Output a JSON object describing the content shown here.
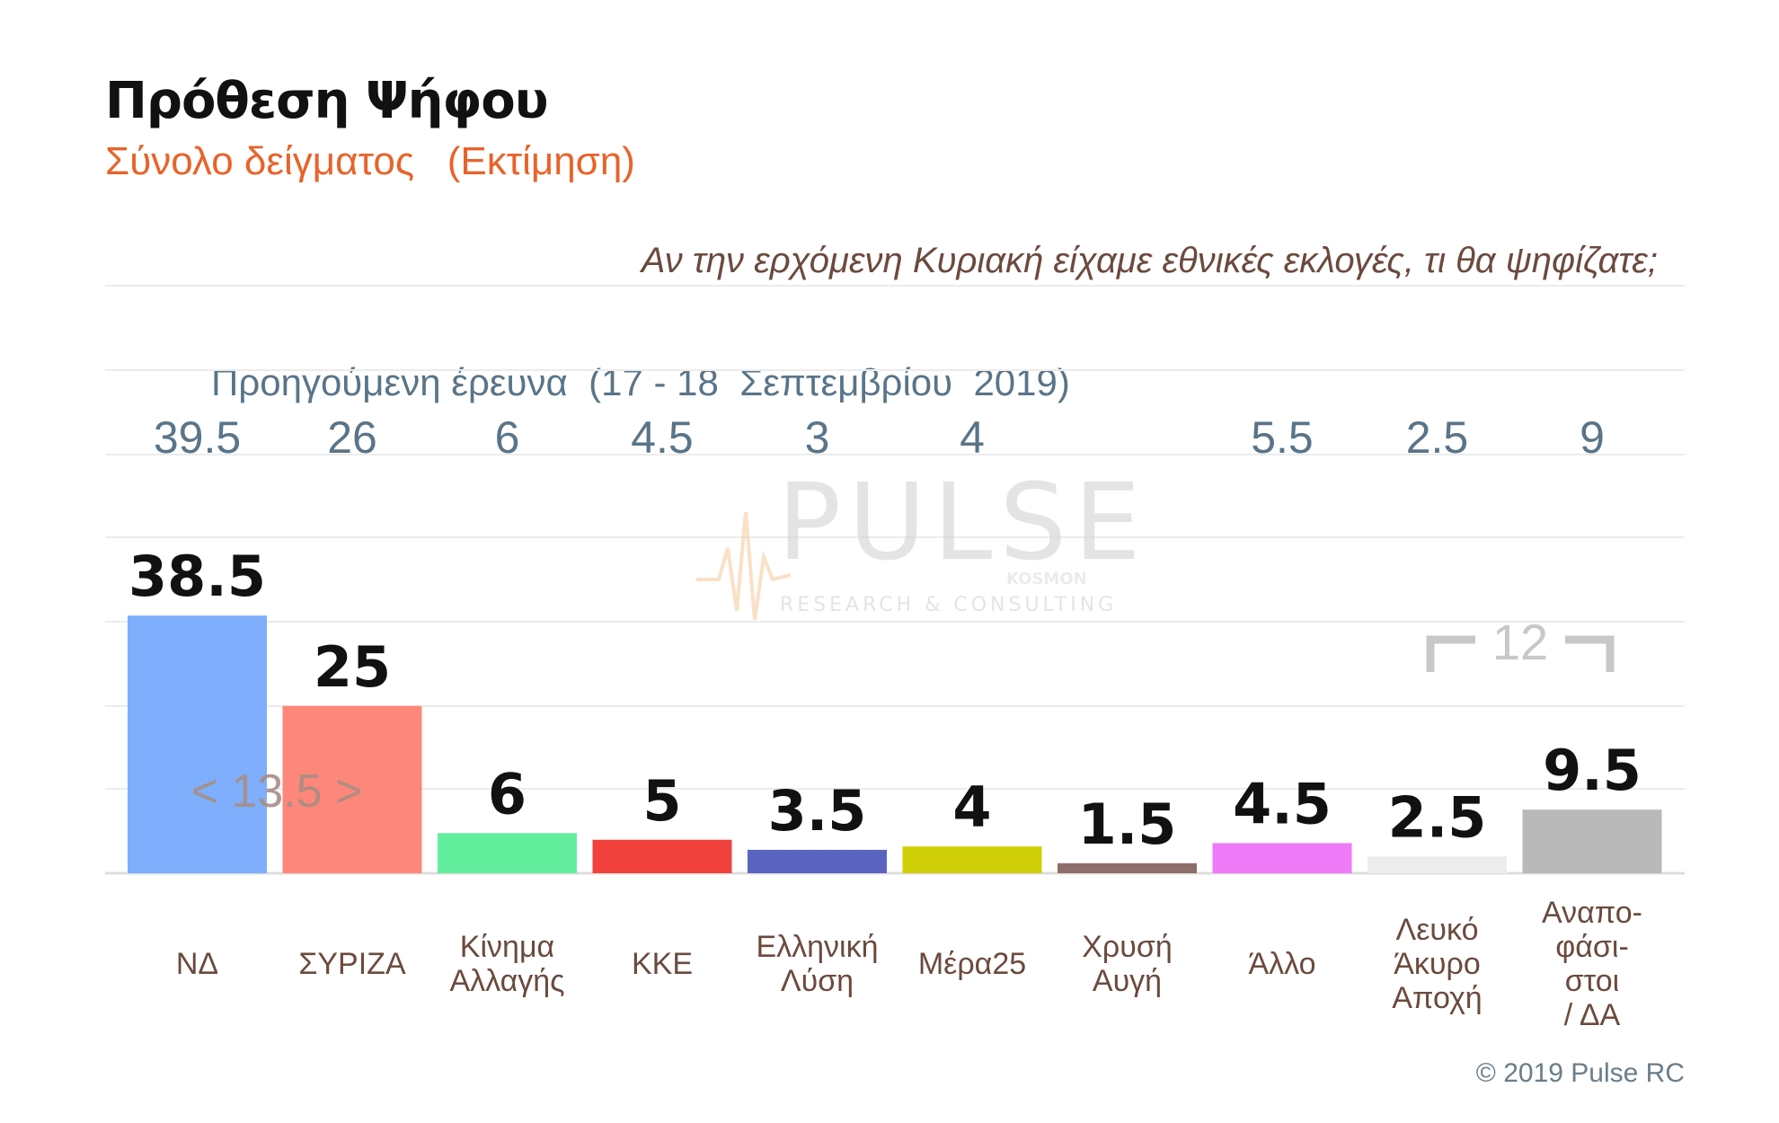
{
  "title": "Πρόθεση Ψήφου",
  "subtitle": "Σύνολο δείγματος   (Εκτίμηση)",
  "question": "Αν την ερχόμενη Κυριακή είχαμε εθνικές εκλογές, τι θα ψηφίζατε;",
  "copyright": "© 2019 Pulse RC",
  "watermark": {
    "name": "PULSE",
    "tagline": "RESEARCH & CONSULTING",
    "small": "KOSMON"
  },
  "chart_data": {
    "type": "bar",
    "title": "Πρόθεση Ψήφου",
    "subtitle": "Σύνολο δείγματος   (Εκτίμηση)",
    "categories": [
      [
        "ΝΔ"
      ],
      [
        "ΣΥΡΙΖΑ"
      ],
      [
        "Κίνημα",
        "Αλλαγής"
      ],
      [
        "ΚΚΕ"
      ],
      [
        "Ελληνική",
        "Λύση"
      ],
      [
        "Μέρα25"
      ],
      [
        "Χρυσή",
        "Αυγή"
      ],
      [
        "Άλλο"
      ],
      [
        "Λευκό",
        "Άκυρο",
        "Αποχή"
      ],
      [
        "Αναπο-",
        "φάσι-",
        "στοι",
        "/ ΔΑ"
      ]
    ],
    "values": [
      38.5,
      25,
      6,
      5,
      3.5,
      4,
      1.5,
      4.5,
      2.5,
      9.5
    ],
    "value_labels": [
      "38.5",
      "25",
      "6",
      "5",
      "3.5",
      "4",
      "1.5",
      "4.5",
      "2.5",
      "9.5"
    ],
    "colors": [
      "#7eaefc",
      "#fd877a",
      "#63ee9e",
      "#f0413c",
      "#5a64c0",
      "#d1cf08",
      "#8e6e6a",
      "#ee7af8",
      "#ececec",
      "#b9b9b9"
    ],
    "previous_label": "Προηγούμενη έρευνα  (17 - 18  Σεπτεμβρίου  2019)",
    "previous_values": [
      "39.5",
      "26",
      "6",
      "4.5",
      "3",
      "4",
      "",
      "5.5",
      "2.5",
      "9"
    ],
    "annotations": {
      "gap_nd_syriza": "< 13.5 >",
      "bracket_undecided": "12"
    },
    "ylim": [
      0,
      40
    ],
    "grid": true,
    "value_color": "#111111",
    "category_color": "#6b4a3e",
    "previous_color": "#5a7488"
  }
}
